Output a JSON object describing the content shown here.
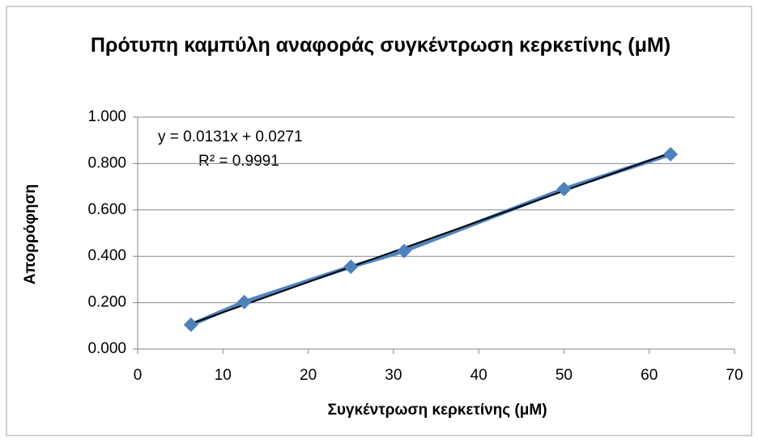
{
  "chart_data": {
    "type": "scatter",
    "title": "Πρότυπη καμπύλη αναφοράς συγκέντρωση κερκετίνης (μM)",
    "x_label": "Συγκέντρωση κερκετίνης (μM)",
    "y_label": "Απορρόφηση",
    "annotations": [
      "y = 0.0131x + 0.0271",
      "R² = 0.9991"
    ],
    "trendline": {
      "slope": 0.0131,
      "intercept": 0.0271,
      "color": "#000000"
    },
    "series": [
      {
        "color": "#4f81bd",
        "x": [
          6.25,
          12.5,
          25,
          31.25,
          50,
          62.5
        ],
        "values": [
          0.105,
          0.203,
          0.355,
          0.423,
          0.69,
          0.84
        ]
      }
    ],
    "xlim": [
      0,
      70
    ],
    "xticks": [
      0,
      10,
      20,
      30,
      40,
      50,
      60,
      70
    ],
    "ylim": [
      0,
      1
    ],
    "yticks": [
      {
        "value": 0,
        "label": "0.000"
      },
      {
        "value": 0.2,
        "label": "0.200"
      },
      {
        "value": 0.4,
        "label": "0.400"
      },
      {
        "value": 0.6,
        "label": "0.600"
      },
      {
        "value": 0.8,
        "label": "0.800"
      },
      {
        "value": 1,
        "label": "1.000"
      }
    ],
    "grid": true
  }
}
